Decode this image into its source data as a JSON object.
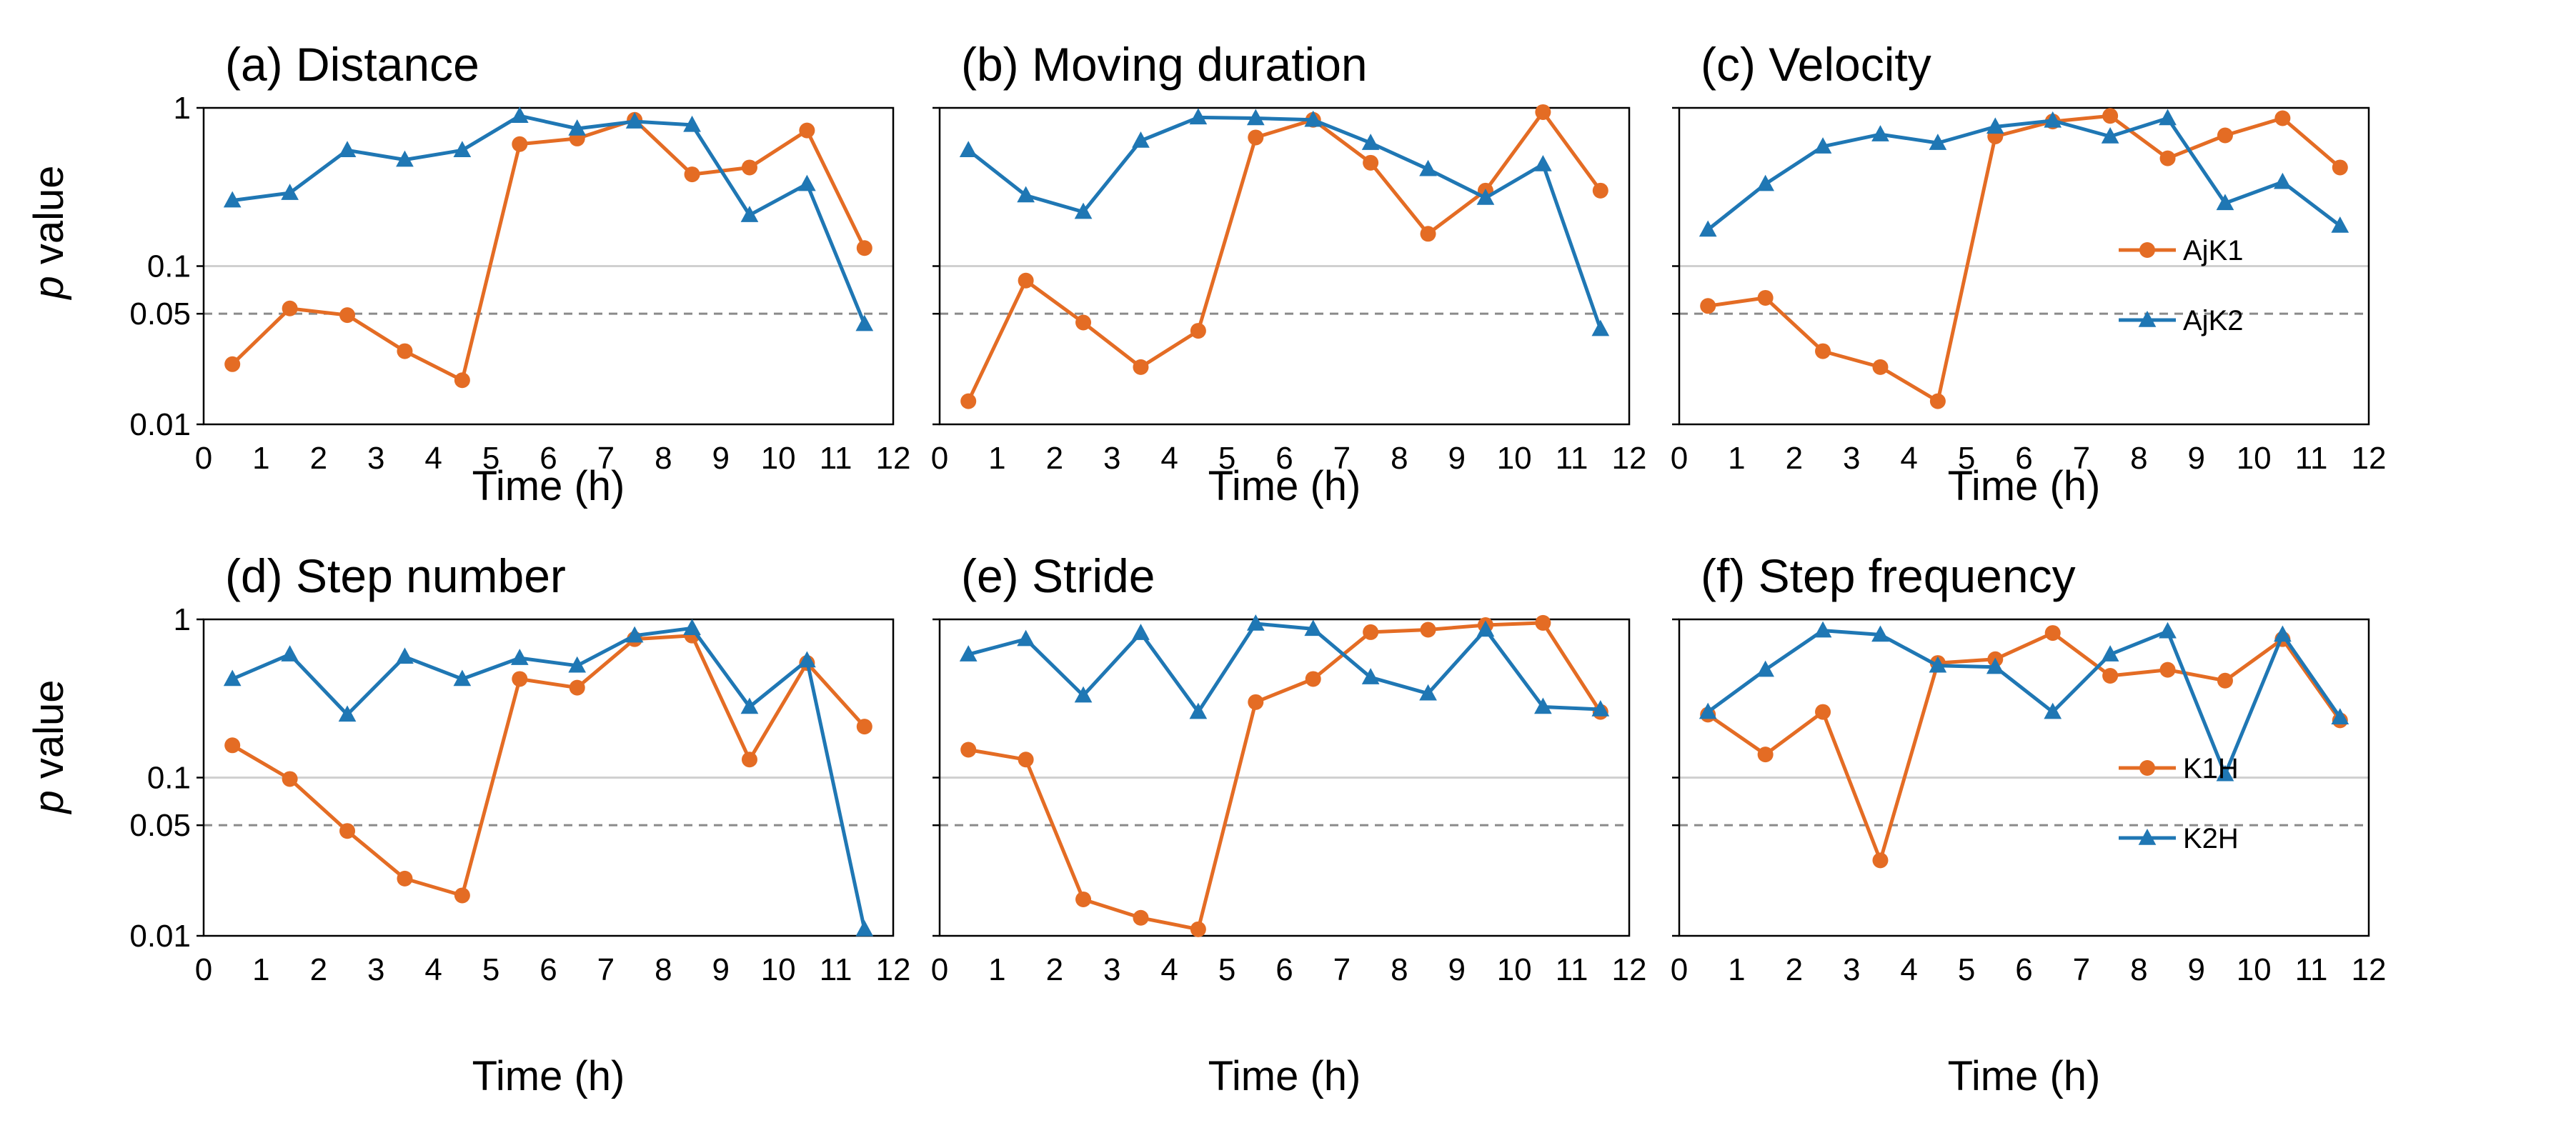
{
  "figure": {
    "ylabel_italic": "p",
    "ylabel_rest": " value"
  },
  "legends": [
    {
      "entries": [
        {
          "name": "AjK1",
          "color": "#e46c24",
          "marker": "circle"
        },
        {
          "name": "AjK2",
          "color": "#1f77b4",
          "marker": "triangle"
        }
      ]
    },
    {
      "entries": [
        {
          "name": "K1H",
          "color": "#e46c24",
          "marker": "circle"
        },
        {
          "name": "K2H",
          "color": "#1f77b4",
          "marker": "triangle"
        }
      ]
    }
  ],
  "chart_data": [
    {
      "type": "line",
      "title": "(a) Distance",
      "xlabel": "Time (h)",
      "ylabel": "p value",
      "yscale": "log",
      "ylim": [
        0.01,
        1
      ],
      "xlim": [
        0,
        12
      ],
      "xticks": [
        "0",
        "1",
        "2",
        "3",
        "4",
        "5",
        "6",
        "7",
        "8",
        "9",
        "10",
        "11",
        "12"
      ],
      "yticks": [
        "1",
        "0.1",
        "0.05",
        "0.01"
      ],
      "reference_lines": [
        {
          "y": 0.1,
          "style": "solid"
        },
        {
          "y": 0.05,
          "style": "dashed"
        }
      ],
      "x": [
        0.5,
        1.5,
        2.5,
        3.5,
        4.5,
        5.5,
        6.5,
        7.5,
        8.5,
        9.5,
        10.5,
        11.5
      ],
      "series": [
        {
          "name": "AjK1",
          "color": "#e46c24",
          "values": [
            0.024,
            0.054,
            0.049,
            0.029,
            0.019,
            0.59,
            0.64,
            0.84,
            0.38,
            0.42,
            0.72,
            0.13
          ]
        },
        {
          "name": "AjK2",
          "color": "#1f77b4",
          "values": [
            0.26,
            0.29,
            0.54,
            0.47,
            0.54,
            0.89,
            0.74,
            0.82,
            0.78,
            0.21,
            0.33,
            0.043
          ]
        }
      ]
    },
    {
      "type": "line",
      "title": "(b) Moving duration",
      "xlabel": "Time (h)",
      "ylabel": "p value",
      "yscale": "log",
      "ylim": [
        0.01,
        1
      ],
      "xlim": [
        0,
        12
      ],
      "xticks": [
        "0",
        "1",
        "2",
        "3",
        "4",
        "5",
        "6",
        "7",
        "8",
        "9",
        "10",
        "11",
        "12"
      ],
      "yticks": [
        "1",
        "0.1",
        "0.05",
        "0.01"
      ],
      "reference_lines": [
        {
          "y": 0.1,
          "style": "solid"
        },
        {
          "y": 0.05,
          "style": "dashed"
        }
      ],
      "x": [
        0.5,
        1.5,
        2.5,
        3.5,
        4.5,
        5.5,
        6.5,
        7.5,
        8.5,
        9.5,
        10.5,
        11.5
      ],
      "series": [
        {
          "name": "AjK1",
          "color": "#e46c24",
          "values": [
            0.014,
            0.081,
            0.044,
            0.023,
            0.039,
            0.65,
            0.84,
            0.45,
            0.16,
            0.3,
            0.94,
            0.3
          ]
        },
        {
          "name": "AjK2",
          "color": "#1f77b4",
          "values": [
            0.54,
            0.28,
            0.22,
            0.62,
            0.87,
            0.86,
            0.84,
            0.6,
            0.41,
            0.27,
            0.44,
            0.04
          ]
        }
      ]
    },
    {
      "type": "line",
      "title": "(c) Velocity",
      "xlabel": "Time (h)",
      "ylabel": "p value",
      "yscale": "log",
      "ylim": [
        0.01,
        1
      ],
      "xlim": [
        0,
        12
      ],
      "xticks": [
        "0",
        "1",
        "2",
        "3",
        "4",
        "5",
        "6",
        "7",
        "8",
        "9",
        "10",
        "11",
        "12"
      ],
      "yticks": [
        "1",
        "0.1",
        "0.05",
        "0.01"
      ],
      "reference_lines": [
        {
          "y": 0.1,
          "style": "solid"
        },
        {
          "y": 0.05,
          "style": "dashed"
        }
      ],
      "x": [
        0.5,
        1.5,
        2.5,
        3.5,
        4.5,
        5.5,
        6.5,
        7.5,
        8.5,
        9.5,
        10.5,
        11.5
      ],
      "series": [
        {
          "name": "AjK1",
          "color": "#e46c24",
          "values": [
            0.056,
            0.063,
            0.029,
            0.023,
            0.014,
            0.66,
            0.82,
            0.89,
            0.48,
            0.67,
            0.86,
            0.42
          ]
        },
        {
          "name": "AjK2",
          "color": "#1f77b4",
          "values": [
            0.17,
            0.33,
            0.57,
            0.68,
            0.6,
            0.76,
            0.83,
            0.66,
            0.86,
            0.25,
            0.34,
            0.18
          ]
        }
      ]
    },
    {
      "type": "line",
      "title": "(d) Step number",
      "xlabel": "Time (h)",
      "ylabel": "p value",
      "yscale": "log",
      "ylim": [
        0.01,
        1
      ],
      "xlim": [
        0,
        12
      ],
      "xticks": [
        "0",
        "1",
        "2",
        "3",
        "4",
        "5",
        "6",
        "7",
        "8",
        "9",
        "10",
        "11",
        "12"
      ],
      "yticks": [
        "1",
        "0.1",
        "0.05",
        "0.01"
      ],
      "reference_lines": [
        {
          "y": 0.1,
          "style": "solid"
        },
        {
          "y": 0.05,
          "style": "dashed"
        }
      ],
      "x": [
        0.5,
        1.5,
        2.5,
        3.5,
        4.5,
        5.5,
        6.5,
        7.5,
        8.5,
        9.5,
        10.5,
        11.5
      ],
      "series": [
        {
          "name": "K1H",
          "color": "#e46c24",
          "values": [
            0.16,
            0.098,
            0.046,
            0.023,
            0.018,
            0.42,
            0.37,
            0.75,
            0.79,
            0.13,
            0.53,
            0.21
          ]
        },
        {
          "name": "K2H",
          "color": "#1f77b4",
          "values": [
            0.42,
            0.6,
            0.25,
            0.58,
            0.42,
            0.57,
            0.51,
            0.79,
            0.88,
            0.28,
            0.55,
            0.011
          ]
        }
      ]
    },
    {
      "type": "line",
      "title": "(e) Stride",
      "xlabel": "Time (h)",
      "ylabel": "p value",
      "yscale": "log",
      "ylim": [
        0.01,
        1
      ],
      "xlim": [
        0,
        12
      ],
      "xticks": [
        "0",
        "1",
        "2",
        "3",
        "4",
        "5",
        "6",
        "7",
        "8",
        "9",
        "10",
        "11",
        "12"
      ],
      "yticks": [
        "1",
        "0.1",
        "0.05",
        "0.01"
      ],
      "reference_lines": [
        {
          "y": 0.1,
          "style": "solid"
        },
        {
          "y": 0.05,
          "style": "dashed"
        }
      ],
      "x": [
        0.5,
        1.5,
        2.5,
        3.5,
        4.5,
        5.5,
        6.5,
        7.5,
        8.5,
        9.5,
        10.5,
        11.5
      ],
      "series": [
        {
          "name": "K1H",
          "color": "#e46c24",
          "values": [
            0.15,
            0.13,
            0.017,
            0.013,
            0.011,
            0.3,
            0.42,
            0.83,
            0.86,
            0.92,
            0.95,
            0.26
          ]
        },
        {
          "name": "K2H",
          "color": "#1f77b4",
          "values": [
            0.6,
            0.75,
            0.33,
            0.82,
            0.26,
            0.94,
            0.87,
            0.43,
            0.34,
            0.86,
            0.28,
            0.27
          ]
        }
      ]
    },
    {
      "type": "line",
      "title": "(f) Step frequency",
      "xlabel": "Time (h)",
      "ylabel": "p value",
      "yscale": "log",
      "ylim": [
        0.01,
        1
      ],
      "xlim": [
        0,
        12
      ],
      "xticks": [
        "0",
        "1",
        "2",
        "3",
        "4",
        "5",
        "6",
        "7",
        "8",
        "9",
        "10",
        "11",
        "12"
      ],
      "yticks": [
        "1",
        "0.1",
        "0.05",
        "0.01"
      ],
      "reference_lines": [
        {
          "y": 0.1,
          "style": "solid"
        },
        {
          "y": 0.05,
          "style": "dashed"
        }
      ],
      "x": [
        0.5,
        1.5,
        2.5,
        3.5,
        4.5,
        5.5,
        6.5,
        7.5,
        8.5,
        9.5,
        10.5,
        11.5
      ],
      "series": [
        {
          "name": "K1H",
          "color": "#e46c24",
          "values": [
            0.25,
            0.14,
            0.26,
            0.03,
            0.53,
            0.56,
            0.82,
            0.44,
            0.48,
            0.41,
            0.75,
            0.23
          ]
        },
        {
          "name": "K2H",
          "color": "#1f77b4",
          "values": [
            0.26,
            0.48,
            0.85,
            0.8,
            0.51,
            0.5,
            0.26,
            0.6,
            0.84,
            0.105,
            0.8,
            0.24
          ]
        }
      ]
    }
  ]
}
